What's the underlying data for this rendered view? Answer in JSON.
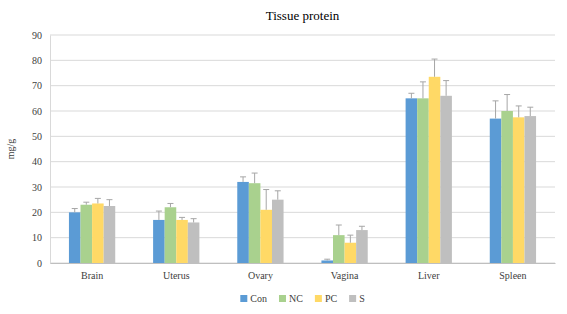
{
  "chart_data": {
    "type": "bar",
    "title": "Tissue protein",
    "y_label": "mg/g",
    "categories": [
      "Brain",
      "Uterus",
      "Ovary",
      "Vagina",
      "Liver",
      "Spleen"
    ],
    "series": [
      {
        "name": "Con",
        "color": "#5b9bd5",
        "values": [
          20,
          17,
          32,
          1,
          65,
          57
        ],
        "errors": [
          1.5,
          3.5,
          2,
          0.5,
          2,
          7
        ]
      },
      {
        "name": "NC",
        "color": "#a9d18e",
        "values": [
          23,
          22,
          31.5,
          11,
          65,
          60
        ],
        "errors": [
          1,
          1.5,
          4,
          4,
          6.5,
          6.5
        ]
      },
      {
        "name": "PC",
        "color": "#ffd966",
        "values": [
          23.5,
          17,
          21,
          8,
          73.5,
          57.5
        ],
        "errors": [
          2,
          1,
          8,
          3,
          7,
          4.5
        ]
      },
      {
        "name": "S",
        "color": "#bfbfbf",
        "values": [
          22.5,
          16,
          25,
          13,
          66,
          58
        ],
        "errors": [
          2.5,
          1.5,
          3.5,
          1.5,
          6,
          3.5
        ]
      }
    ],
    "ylim": [
      0,
      90
    ],
    "yticks": [
      0,
      10,
      20,
      30,
      40,
      50,
      60,
      70,
      80,
      90
    ],
    "grid": true,
    "legend": "bottom"
  }
}
